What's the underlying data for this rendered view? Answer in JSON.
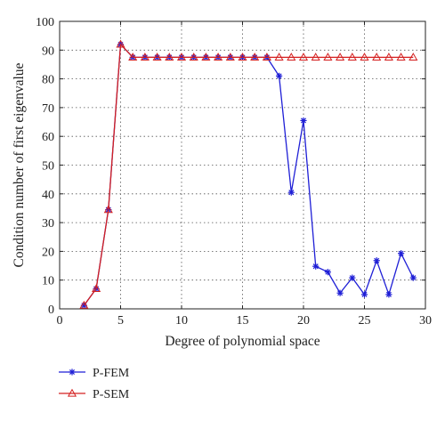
{
  "chart_data": {
    "type": "line",
    "title": "",
    "xlabel": "Degree of polynomial space",
    "ylabel": "Condition number of first eigenvalue",
    "xlim": [
      0,
      30
    ],
    "ylim": [
      0,
      100
    ],
    "xticks": [
      0,
      5,
      10,
      15,
      20,
      25,
      30
    ],
    "yticks": [
      0,
      10,
      20,
      30,
      40,
      50,
      60,
      70,
      80,
      90,
      100
    ],
    "grid": true,
    "legend_placement": "below-left",
    "x": [
      2,
      3,
      4,
      5,
      6,
      7,
      8,
      9,
      10,
      11,
      12,
      13,
      14,
      15,
      16,
      17,
      18,
      19,
      20,
      21,
      22,
      23,
      24,
      25,
      26,
      27,
      28,
      29
    ],
    "series": [
      {
        "name": "P-FEM",
        "color": "#1f1fd6",
        "marker": "asterisk",
        "values": [
          1.2,
          7,
          34.5,
          92,
          87.5,
          87.5,
          87.5,
          87.5,
          87.5,
          87.5,
          87.5,
          87.5,
          87.5,
          87.5,
          87.5,
          87.5,
          81,
          40.5,
          65.5,
          14.8,
          12.8,
          5.5,
          10.8,
          5,
          16.8,
          5,
          19.3,
          10.8
        ]
      },
      {
        "name": "P-SEM",
        "color": "#d42020",
        "marker": "triangle",
        "values": [
          1.2,
          7,
          34.5,
          92,
          87.5,
          87.5,
          87.5,
          87.5,
          87.5,
          87.5,
          87.5,
          87.5,
          87.5,
          87.5,
          87.5,
          87.5,
          87.5,
          87.5,
          87.5,
          87.5,
          87.5,
          87.5,
          87.5,
          87.5,
          87.5,
          87.5,
          87.5,
          87.5
        ]
      }
    ]
  }
}
